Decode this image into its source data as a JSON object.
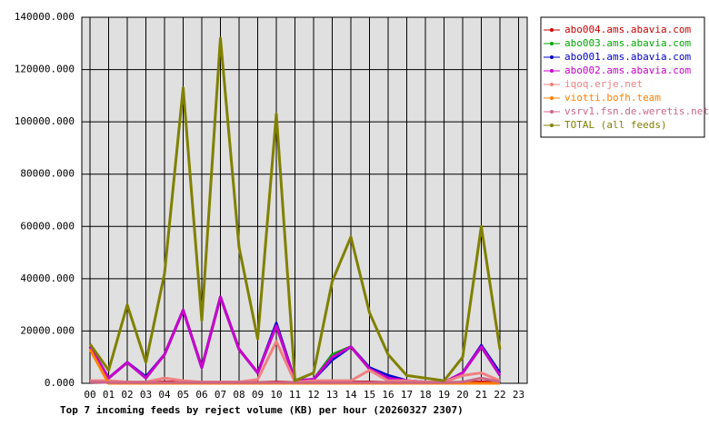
{
  "chart_data": {
    "type": "line",
    "title": "Top 7 incoming feeds by reject volume (KB) per hour (20260327 2307)",
    "categories": [
      "00",
      "01",
      "02",
      "03",
      "04",
      "05",
      "06",
      "07",
      "08",
      "09",
      "10",
      "11",
      "12",
      "13",
      "14",
      "15",
      "16",
      "17",
      "18",
      "19",
      "20",
      "21",
      "22",
      "23"
    ],
    "series": [
      {
        "name": "abo004.ams.abavia.com",
        "color": "#cc0000",
        "values": [
          500,
          300,
          500,
          300,
          500,
          500,
          300,
          500,
          500,
          300,
          500,
          300,
          300,
          500,
          500,
          500,
          300,
          300,
          300,
          300,
          300,
          500,
          300,
          null
        ]
      },
      {
        "name": "abo003.ams.abavia.com",
        "color": "#00aa00",
        "values": [
          14000,
          2000,
          8000,
          2000,
          11000,
          28000,
          6000,
          33000,
          13000,
          4000,
          22000,
          1000,
          1500,
          11000,
          14000,
          5500,
          2000,
          1000,
          500,
          300,
          4000,
          14000,
          3000,
          null
        ]
      },
      {
        "name": "abo001.ams.abavia.com",
        "color": "#0000cc",
        "values": [
          14000,
          2000,
          8000,
          2500,
          11000,
          28000,
          6000,
          33000,
          13000,
          4000,
          23000,
          1000,
          1500,
          9000,
          14000,
          6000,
          3000,
          1000,
          500,
          300,
          4000,
          14500,
          4000,
          null
        ]
      },
      {
        "name": "abo002.ams.abavia.com",
        "color": "#cc00cc",
        "values": [
          14000,
          2000,
          8000,
          2000,
          11000,
          28000,
          6000,
          33000,
          13000,
          4000,
          22000,
          1000,
          1500,
          10000,
          14000,
          5500,
          2000,
          1000,
          500,
          300,
          4000,
          14000,
          3000,
          null
        ]
      },
      {
        "name": "iqoq.erje.net",
        "color": "#f08080",
        "values": [
          1000,
          1000,
          500,
          500,
          2000,
          1000,
          500,
          500,
          500,
          1500,
          16000,
          500,
          1000,
          1000,
          1000,
          5000,
          1000,
          1000,
          500,
          500,
          3000,
          4000,
          1000,
          null
        ]
      },
      {
        "name": "viotti.bofh.team",
        "color": "#ff8000",
        "values": [
          13000,
          0,
          0,
          0,
          0,
          0,
          0,
          0,
          0,
          0,
          0,
          0,
          0,
          0,
          0,
          0,
          0,
          0,
          0,
          0,
          0,
          0,
          0,
          null
        ]
      },
      {
        "name": "vsrv1.fsn.de.weretis.net",
        "color": "#cc6688",
        "values": [
          500,
          300,
          300,
          300,
          300,
          300,
          300,
          300,
          300,
          300,
          300,
          300,
          300,
          300,
          300,
          300,
          300,
          300,
          300,
          300,
          500,
          2000,
          500,
          null
        ]
      },
      {
        "name": "TOTAL (all feeds)",
        "color": "#808000",
        "values": [
          15000,
          5000,
          30000,
          8000,
          42000,
          113000,
          24000,
          132000,
          52000,
          17000,
          103000,
          1000,
          4000,
          39000,
          56000,
          27000,
          11000,
          3000,
          2000,
          1000,
          10000,
          60000,
          13000,
          null
        ]
      }
    ],
    "ylim": [
      0,
      140000
    ],
    "yticks": [
      {
        "value": 0,
        "label": "0.000"
      },
      {
        "value": 20000,
        "label": "20000.000"
      },
      {
        "value": 40000,
        "label": "40000.000"
      },
      {
        "value": 60000,
        "label": "60000.000"
      },
      {
        "value": 80000,
        "label": "80000.000"
      },
      {
        "value": 100000,
        "label": "100000.000"
      },
      {
        "value": 120000,
        "label": "120000.000"
      },
      {
        "value": 140000,
        "label": "140000.000"
      }
    ],
    "grid": true
  }
}
